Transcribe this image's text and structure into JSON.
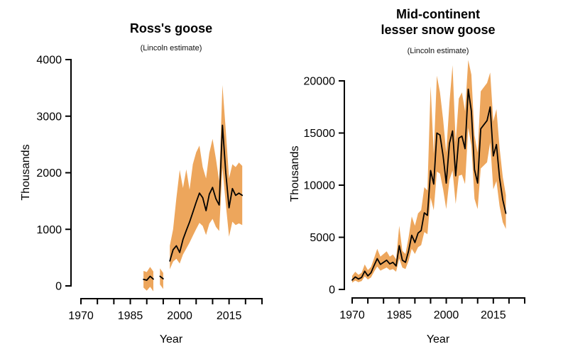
{
  "figure": {
    "background": "#ffffff",
    "band_color": "#EDA65C",
    "line_color": "#000000"
  },
  "chart_data": [
    {
      "type": "line",
      "title": "Ross's goose",
      "subtitle": "(Lincoln estimate)",
      "xlabel": "Year",
      "ylabel": "Thousands",
      "ylim": [
        0,
        4000
      ],
      "y_ticks": [
        0,
        1000,
        2000,
        3000,
        4000
      ],
      "xlim": [
        1970,
        2025
      ],
      "x_minor_tick_interval": 5,
      "x_tick_labels": [
        1970,
        1985,
        2000,
        2015
      ],
      "grid": false,
      "legend": "none",
      "band_color": "#EDA65C",
      "line_color": "#000000",
      "segments": [
        {
          "years": [
            1989,
            1990,
            1991,
            1992
          ],
          "values": [
            115,
            100,
            170,
            120
          ],
          "lower": [
            -30,
            -85,
            -15,
            -95
          ],
          "upper": [
            265,
            245,
            335,
            255
          ]
        },
        {
          "years": [
            1994,
            1995
          ],
          "values": [
            170,
            125
          ],
          "lower": [
            25,
            -55
          ],
          "upper": [
            310,
            230
          ]
        },
        {
          "years": [
            1997,
            1998,
            1999,
            2000,
            2001,
            2002,
            2003,
            2004,
            2005,
            2006,
            2007,
            2008,
            2009,
            2010,
            2011,
            2012,
            2013,
            2014,
            2015,
            2016,
            2017,
            2018,
            2019
          ],
          "values": [
            440,
            640,
            710,
            590,
            820,
            980,
            1130,
            1300,
            1480,
            1640,
            1560,
            1330,
            1620,
            1740,
            1540,
            1430,
            2840,
            2000,
            1380,
            1720,
            1600,
            1640,
            1600
          ],
          "lower": [
            295,
            430,
            480,
            395,
            555,
            660,
            765,
            885,
            1005,
            1115,
            1060,
            900,
            1100,
            1185,
            1045,
            970,
            2090,
            1450,
            870,
            1135,
            1075,
            1105,
            1075
          ],
          "upper": [
            710,
            1000,
            1550,
            2050,
            1730,
            2060,
            1700,
            2150,
            2360,
            2480,
            2100,
            1900,
            2350,
            2600,
            2250,
            1850,
            3550,
            2750,
            1900,
            2150,
            2100,
            2180,
            2120
          ]
        }
      ]
    },
    {
      "type": "line",
      "title": "Mid-continent\nlesser snow goose",
      "subtitle": "(Lincoln estimate)",
      "xlabel": "Year",
      "ylabel": "Thousands",
      "ylim": [
        0,
        20000
      ],
      "y_ticks": [
        0,
        5000,
        10000,
        15000,
        20000
      ],
      "xlim": [
        1970,
        2025
      ],
      "x_minor_tick_interval": 5,
      "x_tick_labels": [
        1970,
        1985,
        2000,
        2015
      ],
      "grid": false,
      "legend": "none",
      "band_color": "#EDA65C",
      "line_color": "#000000",
      "segments": [
        {
          "years": [
            1970,
            1971,
            1972,
            1973,
            1974,
            1975,
            1976,
            1977,
            1978,
            1979,
            1980,
            1981,
            1982,
            1983,
            1984,
            1985,
            1986,
            1987,
            1988,
            1989,
            1990,
            1991,
            1992,
            1993,
            1994,
            1995,
            1996,
            1997,
            1998,
            1999,
            2000,
            2001,
            2002,
            2003,
            2004,
            2005,
            2006,
            2007,
            2008,
            2009,
            2010,
            2011,
            2012,
            2013,
            2014,
            2015,
            2016,
            2017,
            2018,
            2019
          ],
          "values": [
            900,
            1200,
            1000,
            1150,
            1750,
            1300,
            1600,
            2300,
            2950,
            2400,
            2600,
            2800,
            2450,
            2600,
            2250,
            4200,
            2800,
            2600,
            3700,
            5200,
            4500,
            5400,
            5650,
            7350,
            7100,
            11400,
            10100,
            15000,
            14800,
            12800,
            10200,
            14000,
            15200,
            10900,
            14500,
            14700,
            13500,
            19200,
            17100,
            11500,
            10200,
            15400,
            15800,
            16200,
            17500,
            12800,
            13900,
            10700,
            8600,
            7300
          ],
          "lower": [
            650,
            850,
            700,
            800,
            1250,
            950,
            1150,
            1700,
            2200,
            1800,
            1950,
            2100,
            1850,
            1950,
            1700,
            2950,
            2100,
            1950,
            2750,
            3900,
            3400,
            4050,
            4250,
            5500,
            5300,
            8800,
            7600,
            11300,
            11100,
            9600,
            7700,
            10500,
            11400,
            8200,
            10900,
            11000,
            10100,
            15500,
            13800,
            8700,
            7700,
            11600,
            11900,
            12200,
            14100,
            9600,
            10400,
            8000,
            6450,
            5800
          ],
          "upper": [
            1300,
            1700,
            1400,
            1600,
            2400,
            1850,
            2150,
            3000,
            3900,
            3150,
            3400,
            3650,
            3150,
            3350,
            2900,
            6100,
            3700,
            3400,
            5000,
            7000,
            6100,
            7300,
            7600,
            9800,
            9500,
            19500,
            13000,
            20500,
            18900,
            16300,
            13100,
            17900,
            21500,
            14100,
            18300,
            18900,
            17100,
            22000,
            20600,
            14800,
            13100,
            19000,
            19400,
            19800,
            20800,
            16100,
            17300,
            13600,
            10800,
            9050
          ]
        }
      ]
    }
  ]
}
